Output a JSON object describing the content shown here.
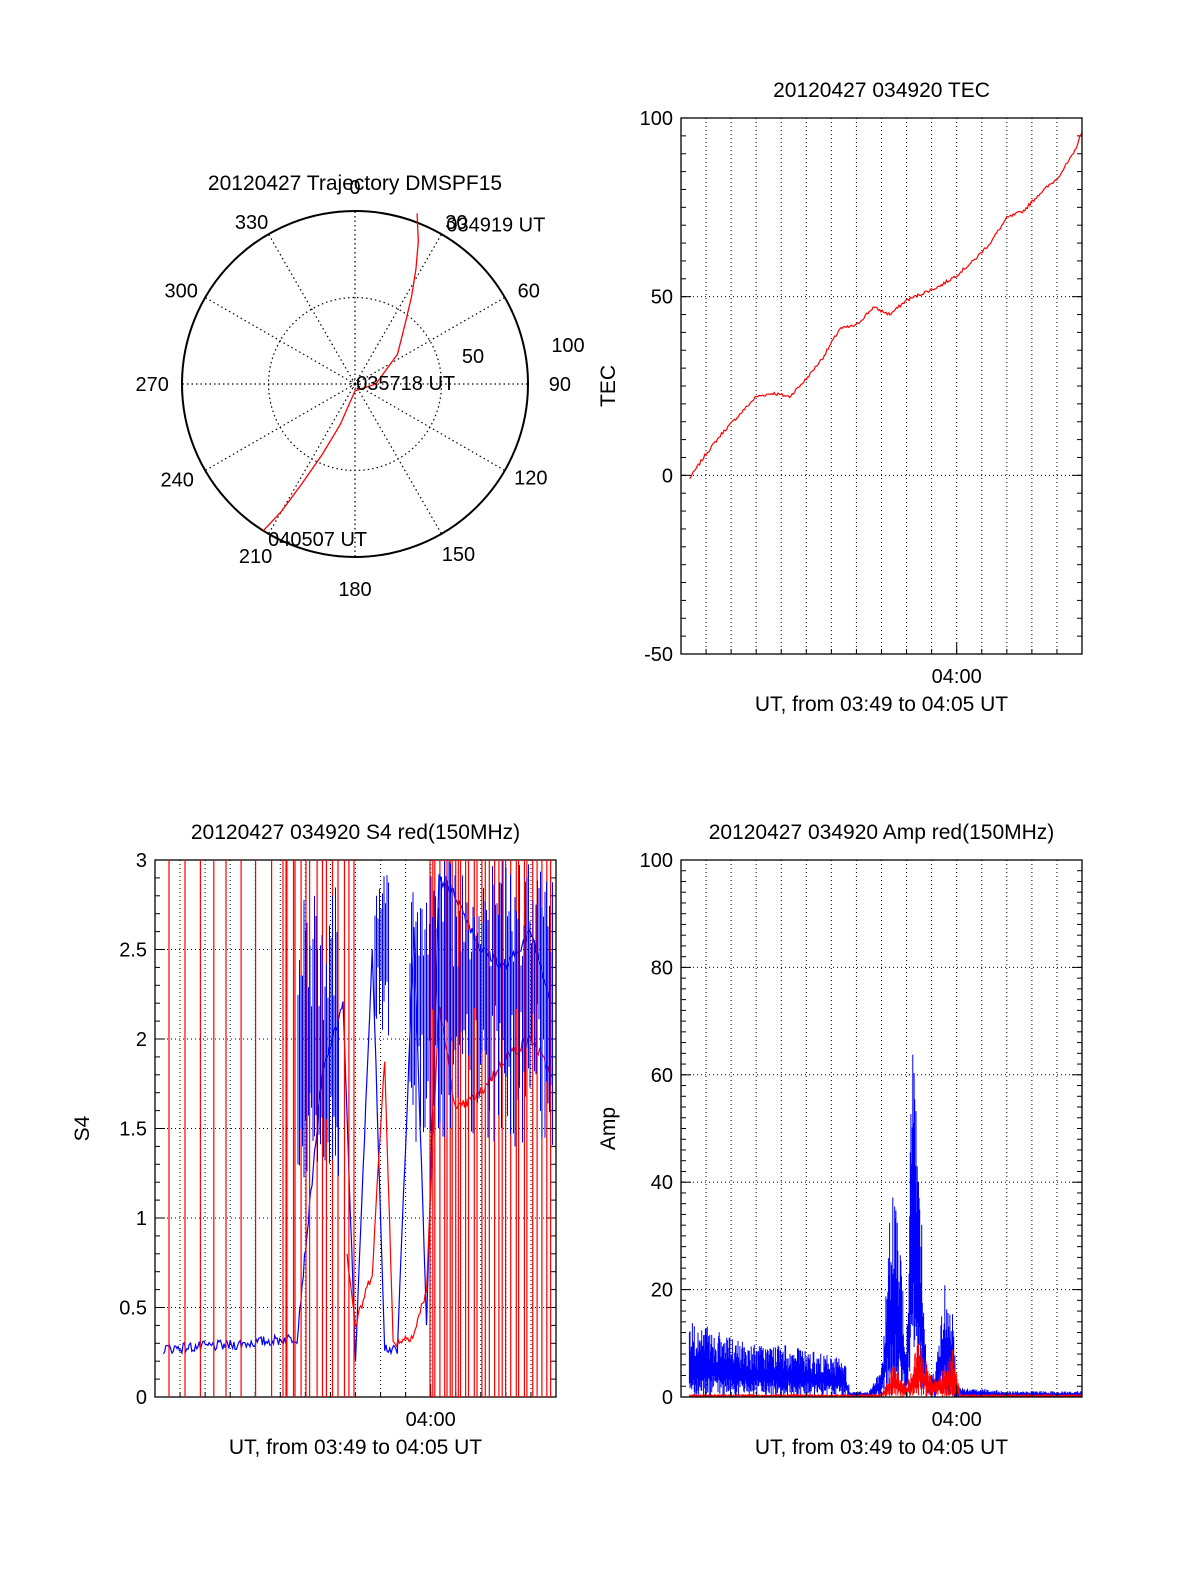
{
  "colors": {
    "red": "#ff0000",
    "blue": "#0000ff",
    "axis": "#000000",
    "grid": "#000000",
    "background": "#ffffff"
  },
  "chart_data": [
    {
      "id": "trajectory",
      "type": "polar",
      "title": "20120427 Trajectory DMSPF15",
      "azimuth_labels": [
        "0",
        "30",
        "60",
        "90",
        "120",
        "150",
        "180",
        "210",
        "240",
        "270",
        "300",
        "330"
      ],
      "azimuth_step_deg": 30,
      "radial_labels": [
        "50",
        "100"
      ],
      "radial_max": 100,
      "radial_rings": [
        50,
        100
      ],
      "grid": true,
      "series": [
        {
          "color": "red",
          "points": [
            [
              20,
              105
            ],
            [
              24,
              90
            ],
            [
              28,
              75
            ],
            [
              33,
              60
            ],
            [
              40,
              45
            ],
            [
              55,
              30
            ],
            [
              90,
              12
            ],
            [
              180,
              4
            ],
            [
              200,
              25
            ],
            [
              205,
              45
            ],
            [
              208,
              65
            ],
            [
              210,
              85
            ],
            [
              212,
              100
            ]
          ]
        }
      ],
      "annotations": [
        {
          "text": "034919 UT",
          "az": 31,
          "r": 107
        },
        {
          "text": "035718 UT",
          "az": 90,
          "r": 3
        },
        {
          "text": "040507 UT",
          "az": 208,
          "r": 102
        }
      ]
    },
    {
      "id": "tec",
      "type": "line",
      "title": "20120427 034920 TEC",
      "xlabel": "UT, from 03:49 to 04:05 UT",
      "ylabel": "TEC",
      "x_range": [
        "03:49",
        "04:05"
      ],
      "x_ticks": [
        "04:00"
      ],
      "ylim": [
        -50,
        100
      ],
      "y_ticks": [
        -50,
        0,
        50,
        100
      ],
      "grid": true,
      "series": [
        {
          "color": "red",
          "x": [
            "03:49:20",
            "03:50:00",
            "03:50:40",
            "03:51:20",
            "03:52:00",
            "03:52:40",
            "03:53:20",
            "03:54:00",
            "03:54:40",
            "03:55:20",
            "03:56:00",
            "03:56:40",
            "03:57:20",
            "03:58:00",
            "03:58:40",
            "03:59:20",
            "04:00:00",
            "04:00:40",
            "04:01:20",
            "04:02:00",
            "04:02:40",
            "04:03:20",
            "04:04:00",
            "04:04:40",
            "04:05:00"
          ],
          "y": [
            -1,
            6,
            12,
            17,
            22,
            23,
            22,
            27,
            33,
            41,
            42,
            47,
            45,
            49,
            51,
            53,
            56,
            60,
            65,
            72,
            74,
            79,
            83,
            90,
            96
          ]
        }
      ]
    },
    {
      "id": "s4",
      "type": "line",
      "title": "20120427 034920 S4 red(150MHz)",
      "xlabel": "UT, from 03:49 to 04:05 UT",
      "ylabel": "S4",
      "x_range": [
        "03:49",
        "04:05"
      ],
      "x_ticks": [
        "04:00"
      ],
      "ylim": [
        0,
        3
      ],
      "y_ticks": [
        "0",
        "0.5",
        "1",
        "1.5",
        "2",
        "2.5",
        "3"
      ],
      "grid": true,
      "series": [
        {
          "color": "blue",
          "x": [
            "03:49:20",
            "03:50:40",
            "03:52:00",
            "03:53:20",
            "03:54:40",
            "03:55:40",
            "03:56:30",
            "03:57:00",
            "03:57:40",
            "03:58:10",
            "03:58:40",
            "03:59:20",
            "03:59:50",
            "04:00:20",
            "04:01:00",
            "04:02:00",
            "04:03:00",
            "04:04:00",
            "04:04:50"
          ],
          "y": [
            0.27,
            0.28,
            0.29,
            0.31,
            0.33,
            1.8,
            2.2,
            0.22,
            2.5,
            0.28,
            0.25,
            2.6,
            0.4,
            2.9,
            2.8,
            2.5,
            2.4,
            2.6,
            2.2
          ]
        },
        {
          "color": "red",
          "x": [
            "03:56:40",
            "03:57:00",
            "03:57:40",
            "03:58:10",
            "03:58:30",
            "03:59:20",
            "03:59:50",
            "04:00:20",
            "04:01:00",
            "04:02:00",
            "04:03:00",
            "04:04:00",
            "04:04:50"
          ],
          "y": [
            0.8,
            0.4,
            0.7,
            1.9,
            0.3,
            0.35,
            0.6,
            2.2,
            1.6,
            1.7,
            1.9,
            2.0,
            1.8
          ]
        }
      ]
    },
    {
      "id": "amp",
      "type": "line",
      "title": "20120427 034920 Amp red(150MHz)",
      "xlabel": "UT, from 03:49 to 04:05 UT",
      "ylabel": "Amp",
      "x_range": [
        "03:49",
        "04:05"
      ],
      "x_ticks": [
        "04:00"
      ],
      "ylim": [
        0,
        100
      ],
      "y_ticks": [
        0,
        20,
        40,
        60,
        80,
        100
      ],
      "grid": true,
      "series": [
        {
          "color": "blue",
          "x": [
            "03:49:20",
            "03:50:00",
            "03:51:00",
            "03:52:00",
            "03:53:00",
            "03:54:00",
            "03:55:00",
            "03:55:30",
            "03:55:45",
            "03:56:30",
            "03:57:00",
            "03:57:30",
            "03:58:00",
            "03:58:15",
            "03:58:30",
            "03:58:50",
            "03:59:10",
            "03:59:30",
            "03:59:50",
            "04:00:00",
            "04:00:20",
            "04:01:00",
            "04:02:00",
            "04:03:00",
            "04:04:00",
            "04:05:00"
          ],
          "y": [
            13,
            12,
            10,
            9,
            9,
            8,
            7,
            7,
            1,
            1,
            5,
            43,
            8,
            66,
            45,
            3,
            5,
            20,
            15,
            2,
            1.5,
            1.5,
            1,
            1,
            1,
            1
          ]
        },
        {
          "color": "red",
          "x": [
            "03:49:20",
            "03:55:00",
            "03:57:00",
            "03:57:30",
            "03:58:00",
            "03:58:30",
            "03:59:00",
            "03:59:30",
            "03:59:50",
            "04:00:10",
            "04:05:00"
          ],
          "y": [
            0.5,
            0.5,
            0.5,
            6,
            2,
            10,
            3,
            5,
            8,
            0.5,
            0.5
          ]
        }
      ]
    }
  ]
}
